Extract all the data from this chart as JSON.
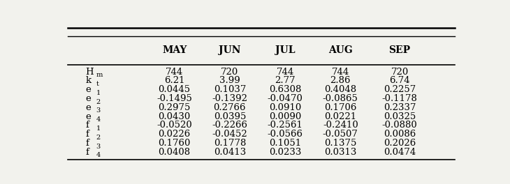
{
  "headers": [
    "MAY",
    "JUN",
    "JUL",
    "AUG",
    "SEP"
  ],
  "rows": [
    [
      "744",
      "720",
      "744",
      "744",
      "720"
    ],
    [
      "6.21",
      "3.99",
      "2.77",
      "2.86",
      "6.74"
    ],
    [
      "0.0445",
      "0.1037",
      "0.6308",
      "0.4048",
      "0.2257"
    ],
    [
      "-0.1495",
      "-0.1392",
      "-0.0470",
      "-0.0865",
      "-0.1178"
    ],
    [
      "0.2975",
      "0.2766",
      "0.0910",
      "0.1706",
      "0.2337"
    ],
    [
      "0.0430",
      "0.0395",
      "0.0090",
      "0.0221",
      "0.0325"
    ],
    [
      "-0.0520",
      "-0.2266",
      "-0.2561",
      "-0.2410",
      "-0.0880"
    ],
    [
      "0.0226",
      "-0.0452",
      "-0.0566",
      "-0.0507",
      "0.0086"
    ],
    [
      "0.1760",
      "0.1778",
      "0.1051",
      "0.1375",
      "0.2026"
    ],
    [
      "0.0408",
      "0.0413",
      "0.0233",
      "0.0313",
      "0.0474"
    ]
  ],
  "row_labels": [
    [
      "H",
      "m"
    ],
    [
      "k",
      "t"
    ],
    [
      "e",
      "1"
    ],
    [
      "e",
      "2"
    ],
    [
      "e",
      "3"
    ],
    [
      "e",
      "4"
    ],
    [
      "f",
      "1"
    ],
    [
      "f",
      "2"
    ],
    [
      "f",
      "3"
    ],
    [
      "f",
      "4"
    ]
  ],
  "bg_color": "#f2f2ed",
  "header_fontsize": 10,
  "cell_fontsize": 9.5,
  "row_label_fontsize": 9.5
}
